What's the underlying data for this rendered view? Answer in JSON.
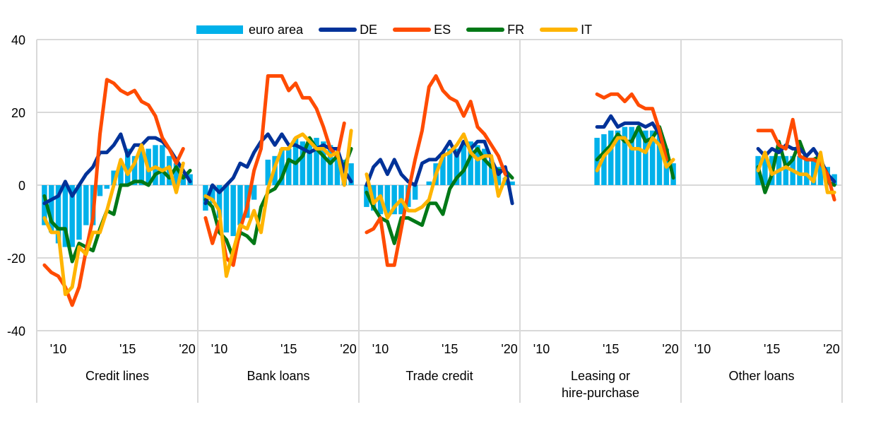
{
  "legend": [
    {
      "label": "euro area",
      "type": "bar",
      "color": "#00b1ea"
    },
    {
      "label": "DE",
      "type": "line",
      "color": "#003299"
    },
    {
      "label": "ES",
      "type": "line",
      "color": "#ff4b00"
    },
    {
      "label": "FR",
      "type": "line",
      "color": "#007816"
    },
    {
      "label": "IT",
      "type": "line",
      "color": "#ffb400"
    }
  ],
  "chart_data": {
    "type": "bar+line",
    "yticks": [
      "40",
      "20",
      "0",
      "-20",
      "-40"
    ],
    "ylim": [
      -40,
      40
    ],
    "grid": true,
    "legend_position": "top",
    "xtick_labels": [
      "'10",
      "'15",
      "'20"
    ],
    "panels": [
      {
        "title": "Credit lines",
        "start_index": 0,
        "series": {
          "euro area": [
            -11,
            -13,
            -16,
            -17,
            -17,
            -15,
            -11,
            -11,
            -3,
            -1,
            4,
            6,
            10,
            8,
            10,
            10,
            11,
            11,
            8,
            6,
            3,
            3
          ],
          "DE": [
            -5,
            -4,
            -3,
            1,
            -3,
            0,
            3,
            5,
            9,
            9,
            11,
            14,
            8,
            11,
            11,
            13,
            13,
            12,
            10,
            7,
            4,
            1
          ],
          "ES": [
            -22,
            -24,
            -25,
            -28,
            -33,
            -28,
            -18,
            -9,
            14,
            29,
            28,
            26,
            25,
            26,
            23,
            22,
            19,
            13,
            10,
            6,
            10
          ],
          "FR": [
            -3,
            -10,
            -12,
            -12,
            -21,
            -16,
            -17,
            -18,
            -12,
            -7,
            -8,
            0,
            0,
            1,
            1,
            0,
            3,
            4,
            2,
            5,
            2,
            4
          ],
          "IT": [
            -9,
            -13,
            -13,
            -30,
            -28,
            -17,
            -19,
            -13,
            -13,
            -7,
            0,
            7,
            3,
            6,
            11,
            4,
            5,
            4,
            5,
            -2,
            6
          ]
        }
      },
      {
        "title": "Bank loans",
        "start_index": 0,
        "series": {
          "euro area": [
            -7,
            -5,
            -9,
            -13,
            -14,
            -11,
            -9,
            -4,
            0,
            7,
            8,
            10,
            10,
            13,
            12,
            13,
            13,
            12,
            11,
            9,
            7,
            6
          ],
          "DE": [
            -5,
            0,
            -2,
            0,
            2,
            6,
            5,
            9,
            12,
            14,
            11,
            14,
            11,
            11,
            10,
            9,
            10,
            11,
            10,
            10,
            4,
            1
          ],
          "ES": [
            -9,
            -16,
            -10,
            -20,
            -22,
            -12,
            -6,
            4,
            10,
            30,
            30,
            30,
            26,
            28,
            24,
            24,
            21,
            16,
            10,
            8,
            17
          ],
          "FR": [
            -4,
            -6,
            -13,
            -15,
            -20,
            -13,
            -14,
            -16,
            -6,
            -2,
            -1,
            2,
            7,
            6,
            8,
            13,
            10,
            8,
            6,
            8,
            5,
            10
          ],
          "IT": [
            -3,
            -4,
            -7,
            -25,
            -18,
            -11,
            -12,
            -7,
            -13,
            -1,
            5,
            10,
            10,
            13,
            14,
            12,
            10,
            10,
            8,
            9,
            0,
            15
          ]
        }
      },
      {
        "title": "Trade credit",
        "start_index": 0,
        "series": {
          "euro area": [
            -6,
            -7,
            -8,
            -8,
            -8,
            -8,
            -6,
            -4,
            0,
            1,
            6,
            9,
            10,
            10,
            12,
            12,
            11,
            10,
            7,
            5,
            2,
            1
          ],
          "DE": [
            0,
            5,
            7,
            3,
            7,
            3,
            1,
            0,
            6,
            7,
            7,
            9,
            12,
            8,
            12,
            10,
            12,
            12,
            7,
            3,
            5,
            -5
          ],
          "ES": [
            -13,
            -12,
            -9,
            -22,
            -22,
            -12,
            -2,
            7,
            15,
            27,
            30,
            26,
            24,
            23,
            19,
            23,
            16,
            14,
            11,
            8,
            3
          ],
          "FR": [
            -2,
            -6,
            -9,
            -10,
            -16,
            -9,
            -9,
            -10,
            -11,
            -5,
            -5,
            -8,
            -1,
            2,
            4,
            8,
            10,
            7,
            5,
            4,
            4,
            2
          ],
          "IT": [
            3,
            -5,
            -3,
            -9,
            -6,
            -4,
            -7,
            -7,
            -6,
            -4,
            3,
            8,
            9,
            11,
            14,
            9,
            7,
            8,
            8,
            -3,
            2
          ]
        }
      },
      {
        "title": "Leasing or\nhire-purchase",
        "start_index": 10,
        "series": {
          "euro area": [
            13,
            14,
            15,
            15,
            16,
            16,
            16,
            15,
            15,
            15,
            10,
            6
          ],
          "DE": [
            16,
            16,
            19,
            16,
            17,
            17,
            17,
            16,
            17,
            14,
            7
          ],
          "ES": [
            25,
            24,
            25,
            25,
            23,
            25,
            22,
            21,
            21,
            15,
            7
          ],
          "FR": [
            7,
            9,
            11,
            14,
            12,
            12,
            16,
            12,
            13,
            16,
            10,
            2
          ],
          "IT": [
            4,
            8,
            10,
            13,
            13,
            10,
            10,
            9,
            13,
            11,
            5,
            7
          ]
        }
      },
      {
        "title": "Other loans",
        "start_index": 10,
        "series": {
          "euro area": [
            8,
            8,
            8,
            8,
            8,
            8,
            8,
            7,
            7,
            7,
            5,
            3
          ],
          "DE": [
            10,
            8,
            10,
            9,
            11,
            10,
            10,
            8,
            10,
            7,
            3,
            1
          ],
          "ES": [
            15,
            15,
            15,
            11,
            10,
            18,
            8,
            7,
            7,
            6,
            3,
            -4
          ],
          "FR": [
            5,
            -2,
            3,
            12,
            5,
            7,
            12,
            7,
            7,
            8,
            1,
            0
          ],
          "IT": [
            4,
            9,
            3,
            4,
            5,
            4,
            3,
            3,
            1,
            9,
            -2,
            -2
          ]
        }
      }
    ]
  }
}
